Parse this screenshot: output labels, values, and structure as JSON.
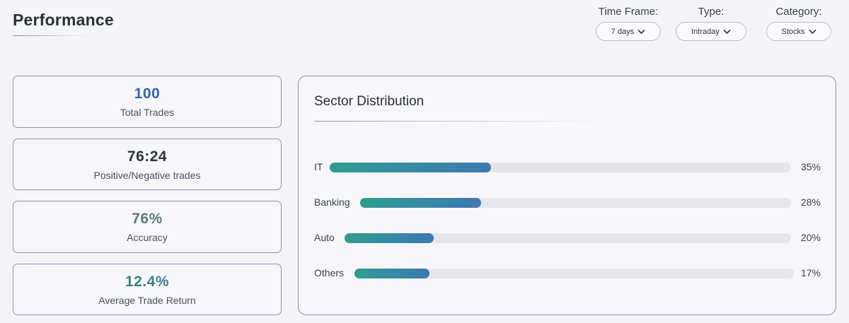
{
  "header": {
    "title": "Performance"
  },
  "filters": {
    "time_frame": {
      "label": "Time Frame:",
      "value": "7 days"
    },
    "type": {
      "label": "Type:",
      "value": "Intraday"
    },
    "category": {
      "label": "Category:",
      "value": "Stocks"
    }
  },
  "stats": [
    {
      "value": "100",
      "label": "Total Trades",
      "color": "#2f63b3"
    },
    {
      "value": "76:24",
      "label": "Positive/Negative trades",
      "color": "#2d3240"
    },
    {
      "value": "76%",
      "label": "Accuracy",
      "color": "#5b7a74"
    },
    {
      "value": "12.4%",
      "label": "Average Trade Return",
      "color": "#3e7f8d"
    }
  ],
  "sector_distribution": {
    "title": "Sector Distribution",
    "sectors": [
      {
        "name": "IT",
        "percent_label": "35%",
        "percent": 35
      },
      {
        "name": "Banking",
        "percent_label": "28%",
        "percent": 28
      },
      {
        "name": "Auto",
        "percent_label": "20%",
        "percent": 20
      },
      {
        "name": "Others",
        "percent_label": "17%",
        "percent": 17
      }
    ]
  },
  "icons": {
    "dropdown": "chevron-down-icon"
  }
}
